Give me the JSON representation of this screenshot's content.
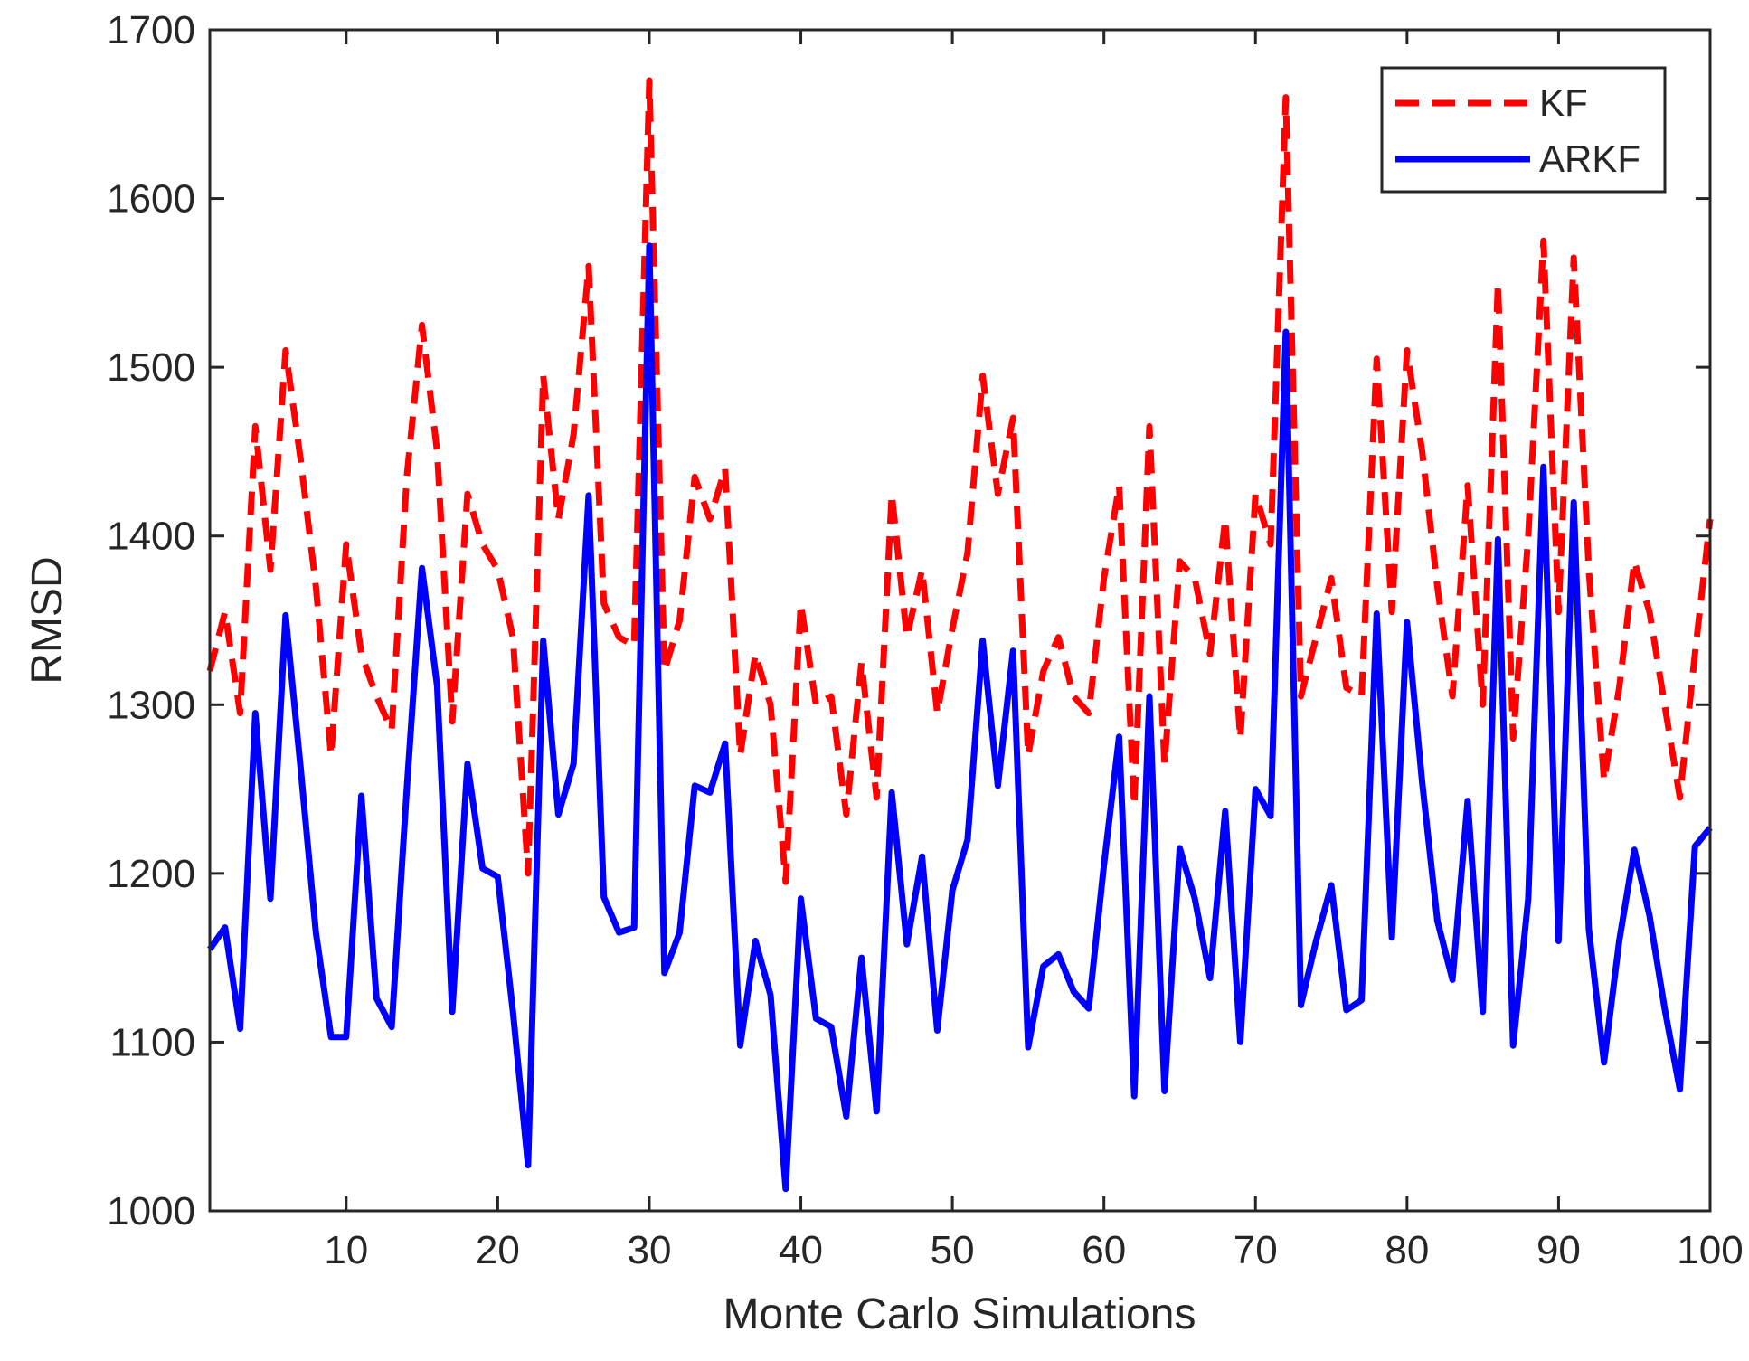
{
  "chart_data": {
    "type": "line",
    "title": "",
    "xlabel": "Monte Carlo Simulations",
    "ylabel": "RMSD",
    "xlim": [
      1,
      100
    ],
    "ylim": [
      1000,
      1700
    ],
    "xticks": [
      10,
      20,
      30,
      40,
      50,
      60,
      70,
      80,
      90,
      100
    ],
    "yticks": [
      1000,
      1100,
      1200,
      1300,
      1400,
      1500,
      1600,
      1700
    ],
    "grid": false,
    "legend_position": "top-right",
    "x": [
      1,
      2,
      3,
      4,
      5,
      6,
      7,
      8,
      9,
      10,
      11,
      12,
      13,
      14,
      15,
      16,
      17,
      18,
      19,
      20,
      21,
      22,
      23,
      24,
      25,
      26,
      27,
      28,
      29,
      30,
      31,
      32,
      33,
      34,
      35,
      36,
      37,
      38,
      39,
      40,
      41,
      42,
      43,
      44,
      45,
      46,
      47,
      48,
      49,
      50,
      51,
      52,
      53,
      54,
      55,
      56,
      57,
      58,
      59,
      60,
      61,
      62,
      63,
      64,
      65,
      66,
      67,
      68,
      69,
      70,
      71,
      72,
      73,
      74,
      75,
      76,
      77,
      78,
      79,
      80,
      81,
      82,
      83,
      84,
      85,
      86,
      87,
      88,
      89,
      90,
      91,
      92,
      93,
      94,
      95,
      96,
      97,
      98,
      99,
      100
    ],
    "series": [
      {
        "name": "KF",
        "color": "#ff0000",
        "style": "dashed",
        "values": [
          1320,
          1355,
          1295,
          1465,
          1380,
          1510,
          1445,
          1370,
          1270,
          1395,
          1330,
          1305,
          1285,
          1435,
          1525,
          1450,
          1290,
          1425,
          1395,
          1380,
          1340,
          1200,
          1495,
          1410,
          1460,
          1560,
          1360,
          1340,
          1335,
          1670,
          1320,
          1350,
          1435,
          1410,
          1440,
          1270,
          1330,
          1300,
          1195,
          1360,
          1300,
          1305,
          1235,
          1325,
          1245,
          1425,
          1340,
          1380,
          1295,
          1345,
          1390,
          1495,
          1425,
          1470,
          1270,
          1320,
          1340,
          1305,
          1295,
          1375,
          1430,
          1240,
          1465,
          1265,
          1385,
          1375,
          1330,
          1410,
          1280,
          1425,
          1395,
          1660,
          1305,
          1340,
          1375,
          1310,
          1305,
          1505,
          1355,
          1510,
          1450,
          1370,
          1305,
          1430,
          1300,
          1550,
          1280,
          1400,
          1575,
          1355,
          1565,
          1380,
          1255,
          1310,
          1385,
          1355,
          1300,
          1245,
          1330,
          1410
        ]
      },
      {
        "name": "ARKF",
        "color": "#0000ff",
        "style": "solid",
        "values": [
          1155,
          1168,
          1108,
          1295,
          1185,
          1353,
          1262,
          1165,
          1103,
          1103,
          1246,
          1126,
          1109,
          1250,
          1381,
          1311,
          1118,
          1265,
          1203,
          1198,
          1118,
          1027,
          1338,
          1235,
          1265,
          1424,
          1186,
          1165,
          1168,
          1572,
          1141,
          1165,
          1252,
          1248,
          1277,
          1098,
          1160,
          1128,
          1013,
          1185,
          1114,
          1109,
          1056,
          1150,
          1059,
          1248,
          1158,
          1210,
          1107,
          1190,
          1220,
          1338,
          1252,
          1332,
          1097,
          1145,
          1152,
          1130,
          1120,
          1205,
          1281,
          1068,
          1305,
          1071,
          1215,
          1185,
          1138,
          1237,
          1100,
          1250,
          1234,
          1521,
          1122,
          1160,
          1193,
          1119,
          1125,
          1354,
          1162,
          1349,
          1254,
          1172,
          1137,
          1243,
          1118,
          1398,
          1098,
          1185,
          1441,
          1160,
          1420,
          1167,
          1088,
          1160,
          1214,
          1175,
          1120,
          1072,
          1216,
          1227
        ]
      }
    ]
  }
}
